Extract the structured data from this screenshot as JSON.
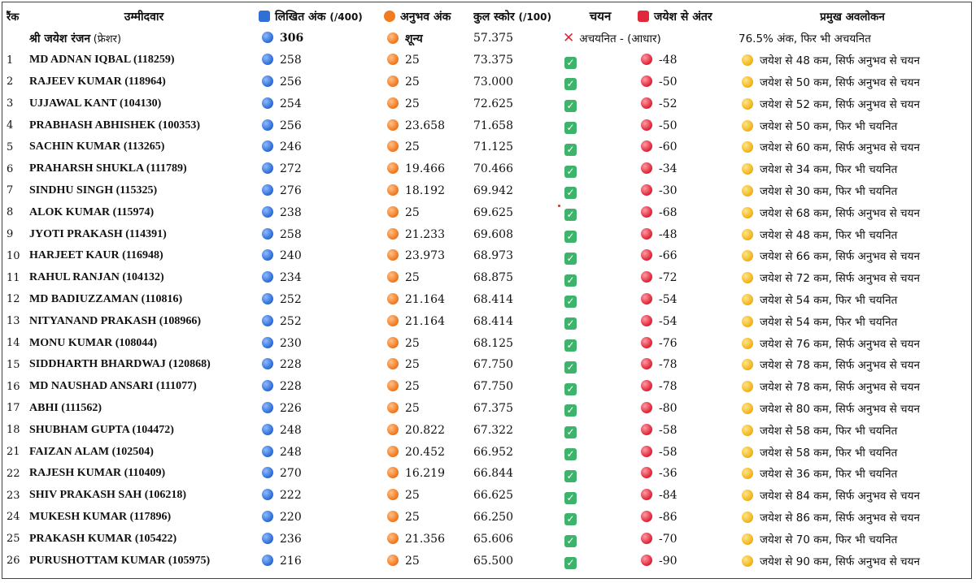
{
  "headers": {
    "rank": "रैंक",
    "candidate": "उम्मीदवार",
    "written": "लिखित अंक",
    "written_suffix": "(/400)",
    "exp": "अनुभव अंक",
    "total": "कुल स्कोर",
    "total_suffix": "(/100)",
    "selection": "चयन",
    "diff": "जयेश से अंतर",
    "obs": "प्रमुख अवलोकन"
  },
  "highlight": {
    "name": "श्री जयेश रंजन",
    "tag": "(फ्रेशर)",
    "written": "306",
    "exp": "शून्य",
    "total": "57.375",
    "selection": "अचयनित - (आधार)",
    "obs": "76.5% अंक, फिर भी अचयनित"
  },
  "colors": {
    "blue": "#2f6fd6",
    "orange": "#f27a1f",
    "red": "#e0283a",
    "yellow": "#f2b51a",
    "green": "#3db36b"
  },
  "rows": [
    {
      "rank": "1",
      "name": "MD ADNAN IQBAL (118259)",
      "written": "258",
      "exp": "25",
      "total": "73.375",
      "diff": "-48",
      "obs": "जयेश से 48 कम, सिर्फ अनुभव से चयन"
    },
    {
      "rank": "2",
      "name": "RAJEEV KUMAR (118964)",
      "written": "256",
      "exp": "25",
      "total": "73.000",
      "diff": "-50",
      "obs": "जयेश से 50 कम, सिर्फ अनुभव से चयन"
    },
    {
      "rank": "3",
      "name": "UJJAWAL KANT (104130)",
      "written": "254",
      "exp": "25",
      "total": "72.625",
      "diff": "-52",
      "obs": "जयेश से 52 कम, सिर्फ अनुभव से चयन"
    },
    {
      "rank": "4",
      "name": "PRABHASH ABHISHEK (100353)",
      "written": "256",
      "exp": "23.658",
      "total": "71.658",
      "diff": "-50",
      "obs": "जयेश से 50 कम, फिर भी चयनित"
    },
    {
      "rank": "5",
      "name": "SACHIN KUMAR (113265)",
      "written": "246",
      "exp": "25",
      "total": "71.125",
      "diff": "-60",
      "obs": "जयेश से 60 कम, सिर्फ अनुभव से चयन"
    },
    {
      "rank": "6",
      "name": "PRAHARSH SHUKLA (111789)",
      "written": "272",
      "exp": "19.466",
      "total": "70.466",
      "diff": "-34",
      "obs": "जयेश से 34 कम, फिर भी चयनित"
    },
    {
      "rank": "7",
      "name": "SINDHU SINGH (115325)",
      "written": "276",
      "exp": "18.192",
      "total": "69.942",
      "diff": "-30",
      "obs": "जयेश से 30 कम, फिर भी चयनित"
    },
    {
      "rank": "8",
      "name": "ALOK KUMAR (115974)",
      "written": "238",
      "exp": "25",
      "total": "69.625",
      "diff": "-68",
      "obs": "जयेश से 68 कम, सिर्फ अनुभव से चयन"
    },
    {
      "rank": "9",
      "name": "JYOTI PRAKASH (114391)",
      "written": "258",
      "exp": "21.233",
      "total": "69.608",
      "diff": "-48",
      "obs": "जयेश से 48 कम, फिर भी चयनित"
    },
    {
      "rank": "10",
      "name": "HARJEET KAUR (116948)",
      "written": "240",
      "exp": "23.973",
      "total": "68.973",
      "diff": "-66",
      "obs": "जयेश से 66 कम, सिर्फ अनुभव से चयन"
    },
    {
      "rank": "11",
      "name": "RAHUL RANJAN (104132)",
      "written": "234",
      "exp": "25",
      "total": "68.875",
      "diff": "-72",
      "obs": "जयेश से 72 कम, सिर्फ अनुभव से चयन"
    },
    {
      "rank": "12",
      "name": "MD BADIUZZAMAN (110816)",
      "written": "252",
      "exp": "21.164",
      "total": "68.414",
      "diff": "-54",
      "obs": "जयेश से 54 कम, फिर भी चयनित"
    },
    {
      "rank": "13",
      "name": "NITYANAND PRAKASH (108966)",
      "written": "252",
      "exp": "21.164",
      "total": "68.414",
      "diff": "-54",
      "obs": "जयेश से 54 कम, फिर भी चयनित"
    },
    {
      "rank": "14",
      "name": "MONU KUMAR (108044)",
      "written": "230",
      "exp": "25",
      "total": "68.125",
      "diff": "-76",
      "obs": "जयेश से 76 कम, सिर्फ अनुभव से चयन"
    },
    {
      "rank": "15",
      "name": "SIDDHARTH BHARDWAJ (120868)",
      "written": "228",
      "exp": "25",
      "total": "67.750",
      "diff": "-78",
      "obs": "जयेश से 78 कम, सिर्फ अनुभव से चयन"
    },
    {
      "rank": "16",
      "name": "MD NAUSHAD ANSARI (111077)",
      "written": "228",
      "exp": "25",
      "total": "67.750",
      "diff": "-78",
      "obs": "जयेश से 78 कम, सिर्फ अनुभव से चयन"
    },
    {
      "rank": "17",
      "name": "ABHI (111562)",
      "written": "226",
      "exp": "25",
      "total": "67.375",
      "diff": "-80",
      "obs": "जयेश से 80 कम, सिर्फ अनुभव से चयन"
    },
    {
      "rank": "18",
      "name": "SHUBHAM GUPTA (104472)",
      "written": "248",
      "exp": "20.822",
      "total": "67.322",
      "diff": "-58",
      "obs": "जयेश से 58 कम, फिर भी चयनित"
    },
    {
      "rank": "21",
      "name": "FAIZAN ALAM (102504)",
      "written": "248",
      "exp": "20.452",
      "total": "66.952",
      "diff": "-58",
      "obs": "जयेश से 58 कम, फिर भी चयनित"
    },
    {
      "rank": "22",
      "name": "RAJESH KUMAR (110409)",
      "written": "270",
      "exp": "16.219",
      "total": "66.844",
      "diff": "-36",
      "obs": "जयेश से 36 कम, फिर भी चयनित"
    },
    {
      "rank": "23",
      "name": "SHIV PRAKASH SAH (106218)",
      "written": "222",
      "exp": "25",
      "total": "66.625",
      "diff": "-84",
      "obs": "जयेश से 84 कम, सिर्फ अनुभव से चयन"
    },
    {
      "rank": "24",
      "name": "MUKESH KUMAR (117896)",
      "written": "220",
      "exp": "25",
      "total": "66.250",
      "diff": "-86",
      "obs": "जयेश से 86 कम, सिर्फ अनुभव से चयन"
    },
    {
      "rank": "25",
      "name": "PRAKASH KUMAR (105422)",
      "written": "236",
      "exp": "21.356",
      "total": "65.606",
      "diff": "-70",
      "obs": "जयेश से 70 कम, फिर भी चयनित"
    },
    {
      "rank": "26",
      "name": "PURUSHOTTAM KUMAR (105975)",
      "written": "216",
      "exp": "25",
      "total": "65.500",
      "diff": "-90",
      "obs": "जयेश से 90 कम, सिर्फ अनुभव से चयन"
    }
  ]
}
